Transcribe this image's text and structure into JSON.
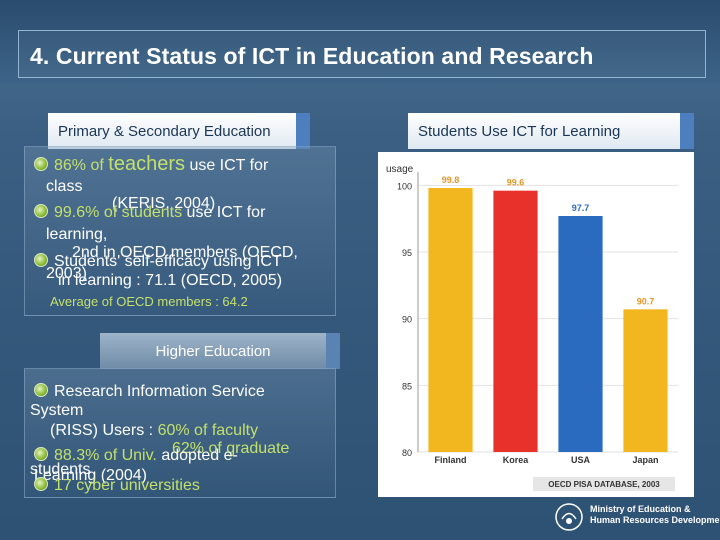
{
  "slide": {
    "title": "4. Current Status of ICT in Education and Research"
  },
  "left": {
    "primary_header": "Primary & Secondary Education",
    "b1_a": "86% of",
    "b1_b": "teachers",
    "b1_c": "use ICT for",
    "b1_d": "class",
    "b1_e": "(KERIS, 2004)",
    "b2_a": "99.6% of",
    "b2_b": "students",
    "b2_c": "use ICT for",
    "b2_d": "learning,",
    "b3_a": "2nd in  OECD members (OECD,",
    "b3_b": "Students' self-efficacy using ICT",
    "b3_c": "2003)",
    "b3_d": "in learning : 71.1 (OECD, 2005)",
    "b3_e": "Average of OECD members : 64.2",
    "higher_header": "Higher Education",
    "h1_a": "Research Information Service",
    "h1_b": "System",
    "h1_c": "(RISS) Users :",
    "h1_d": "60% of faculty",
    "h1_e": "62% of graduate",
    "h2_a": "88.3% of Univ.",
    "h2_b": "adopted e-",
    "h2_c": "students",
    "h2_d": "Learning (2004)",
    "h3_a": "17 cyber universities"
  },
  "right": {
    "header": "Students Use ICT for Learning"
  },
  "chart_data": {
    "type": "bar",
    "ylabel": "usage",
    "categories": [
      "Finland",
      "Korea",
      "USA",
      "Japan"
    ],
    "values": [
      99.8,
      99.6,
      97.7,
      90.7
    ],
    "value_labels": [
      "99.8",
      "99.6",
      "97.7",
      "90.7"
    ],
    "ylim": [
      80,
      101
    ],
    "yticks": [
      80,
      85,
      90,
      95,
      100
    ],
    "ytick_labels": [
      "80",
      "85",
      "90",
      "95",
      "100"
    ],
    "bar_colors": [
      "#f2b61e",
      "#e8312a",
      "#2a6bbf",
      "#f2b61e"
    ],
    "source": "OECD PISA DATABASE, 2003"
  },
  "footer": {
    "org_line1": "Ministry of Education &",
    "org_line2": "Human Resources Development",
    "logo_icon": "ministry-logo-icon"
  }
}
